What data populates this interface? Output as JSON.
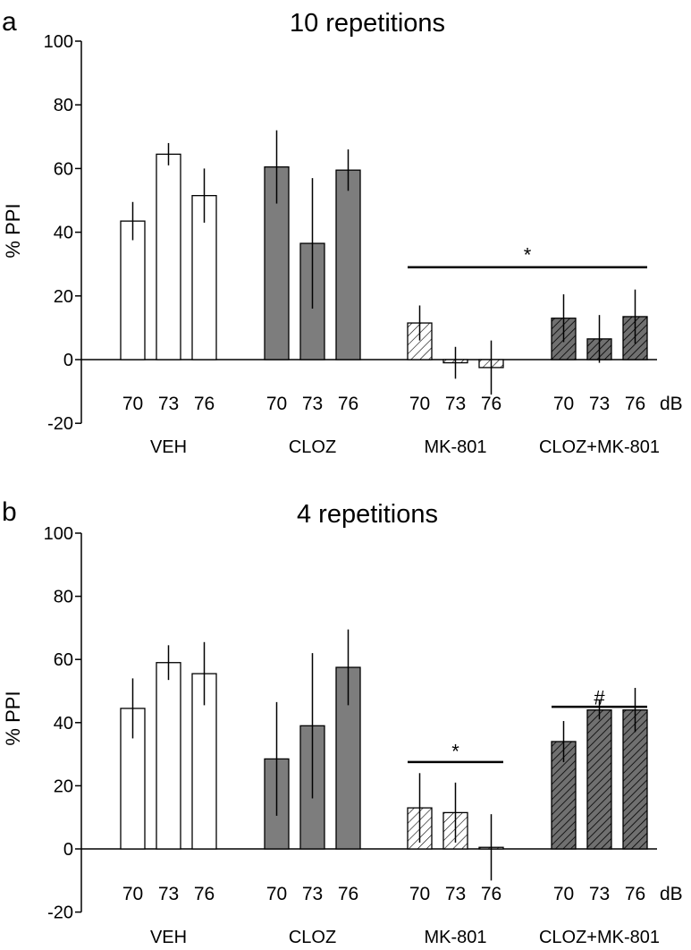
{
  "chart_data": [
    {
      "panel": "a",
      "type": "bar",
      "title": "10 repetitions",
      "ylabel": "% PPI",
      "ylim": [
        -20,
        100
      ],
      "yticks": [
        -20,
        0,
        20,
        40,
        60,
        80,
        100
      ],
      "unit_label": "dB",
      "groups": [
        {
          "name": "VEH",
          "pattern": "white",
          "bars": [
            {
              "label": "70",
              "value": 43.5,
              "err": 6
            },
            {
              "label": "73",
              "value": 64.5,
              "err": 3.5
            },
            {
              "label": "76",
              "value": 51.5,
              "err": 8.5
            }
          ]
        },
        {
          "name": "CLOZ",
          "pattern": "gray",
          "bars": [
            {
              "label": "70",
              "value": 60.5,
              "err": 11.5
            },
            {
              "label": "73",
              "value": 36.5,
              "err": 20.5
            },
            {
              "label": "76",
              "value": 59.5,
              "err": 6.5
            }
          ]
        },
        {
          "name": "MK-801",
          "pattern": "hatch-light",
          "bars": [
            {
              "label": "70",
              "value": 11.5,
              "err": 5.5
            },
            {
              "label": "73",
              "value": -1,
              "err": 5
            },
            {
              "label": "76",
              "value": -2.5,
              "err": 8.5
            }
          ]
        },
        {
          "name": "CLOZ+MK-801",
          "pattern": "hatch-dark",
          "bars": [
            {
              "label": "70",
              "value": 13,
              "err": 7.5
            },
            {
              "label": "73",
              "value": 6.5,
              "err": 7.5
            },
            {
              "label": "76",
              "value": 13.5,
              "err": 8.5
            }
          ]
        }
      ],
      "annotations": [
        {
          "text": "*",
          "from_group": 2,
          "to_group": 3,
          "y": 29,
          "label_y": 33
        }
      ]
    },
    {
      "panel": "b",
      "type": "bar",
      "title": "4 repetitions",
      "ylabel": "% PPI",
      "ylim": [
        -20,
        100
      ],
      "yticks": [
        -20,
        0,
        20,
        40,
        60,
        80,
        100
      ],
      "unit_label": "dB",
      "groups": [
        {
          "name": "VEH",
          "pattern": "white",
          "bars": [
            {
              "label": "70",
              "value": 44.5,
              "err": 9.5
            },
            {
              "label": "73",
              "value": 59,
              "err": 5.5
            },
            {
              "label": "76",
              "value": 55.5,
              "err": 10
            }
          ]
        },
        {
          "name": "CLOZ",
          "pattern": "gray",
          "bars": [
            {
              "label": "70",
              "value": 28.5,
              "err": 18
            },
            {
              "label": "73",
              "value": 39,
              "err": 23
            },
            {
              "label": "76",
              "value": 57.5,
              "err": 12
            }
          ]
        },
        {
          "name": "MK-801",
          "pattern": "hatch-light",
          "bars": [
            {
              "label": "70",
              "value": 13,
              "err": 11
            },
            {
              "label": "73",
              "value": 11.5,
              "err": 9.5
            },
            {
              "label": "76",
              "value": 0.5,
              "err": 10.5
            }
          ]
        },
        {
          "name": "CLOZ+MK-801",
          "pattern": "hatch-dark",
          "bars": [
            {
              "label": "70",
              "value": 34,
              "err": 6.5
            },
            {
              "label": "73",
              "value": 44,
              "err": 3
            },
            {
              "label": "76",
              "value": 44,
              "err": 7
            }
          ]
        }
      ],
      "annotations": [
        {
          "text": "*",
          "from_group": 2,
          "to_group": 2,
          "y": 27.5,
          "label_y": 31
        },
        {
          "text": "#",
          "from_group": 3,
          "to_group": 3,
          "y": 45,
          "label_y": 48
        }
      ]
    }
  ],
  "colors": {
    "bar_white": "#ffffff",
    "bar_gray": "#7d7d7d",
    "hatch_light_bg": "#ffffff",
    "hatch_dark_bg": "#707070",
    "stroke": "#000000"
  }
}
